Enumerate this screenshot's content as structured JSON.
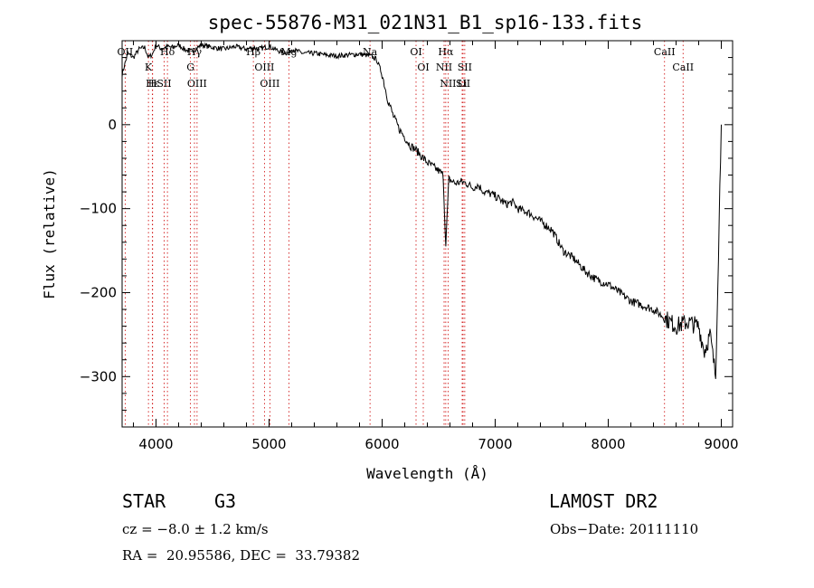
{
  "chart_data": {
    "type": "line",
    "title": "spec-55876-M31_021N31_B1_sp16-133.fits",
    "xlabel": "Wavelength (Å)",
    "ylabel": "Flux (relative)",
    "xlim": [
      3700,
      9100
    ],
    "ylim": [
      -360,
      100
    ],
    "xticks": [
      4000,
      5000,
      6000,
      7000,
      8000,
      9000
    ],
    "yticks": [
      0,
      -100,
      -200,
      -300
    ],
    "grid": false,
    "series": [
      {
        "x": [
          3700,
          3750,
          3800,
          3850,
          3900,
          3933,
          3968,
          4000,
          4050,
          4100,
          4150,
          4200,
          4250,
          4300,
          4350,
          4400,
          4500,
          4600,
          4700,
          4800,
          4861,
          4900,
          5000,
          5100,
          5175,
          5200,
          5300,
          5400,
          5500,
          5600,
          5700,
          5800,
          5893,
          5950,
          6000,
          6050,
          6100,
          6150,
          6200,
          6250,
          6300,
          6350,
          6400,
          6450,
          6500,
          6540,
          6563,
          6590,
          6650,
          6700,
          6750,
          6800,
          6850,
          6900,
          6950,
          7000,
          7050,
          7100,
          7150,
          7200,
          7300,
          7400,
          7500,
          7600,
          7700,
          7800,
          7900,
          8000,
          8100,
          8200,
          8300,
          8400,
          8500,
          8600,
          8700,
          8800,
          8850,
          8900,
          8950,
          9000
        ],
        "y": [
          60,
          85,
          80,
          90,
          92,
          80,
          84,
          95,
          90,
          93,
          92,
          95,
          90,
          87,
          90,
          95,
          92,
          90,
          93,
          90,
          92,
          90,
          93,
          87,
          85,
          90,
          85,
          85,
          83,
          82,
          83,
          84,
          82,
          78,
          60,
          30,
          10,
          -5,
          -15,
          -25,
          -30,
          -38,
          -45,
          -50,
          -55,
          -60,
          -145,
          -65,
          -70,
          -68,
          -70,
          -75,
          -72,
          -80,
          -82,
          -85,
          -90,
          -95,
          -92,
          -100,
          -105,
          -115,
          -125,
          -150,
          -160,
          -175,
          -185,
          -190,
          -200,
          -210,
          -215,
          -220,
          -230,
          -240,
          -235,
          -240,
          -270,
          -250,
          -300,
          0
        ]
      }
    ],
    "lines": [
      {
        "label": "Hδ",
        "wave": 4101
      },
      {
        "label": "K",
        "wave": 3933
      },
      {
        "label": "H",
        "wave": 3968
      },
      {
        "label": "Hε",
        "wave": 3970
      },
      {
        "label": "OII",
        "wave": 3727
      },
      {
        "label": "SII",
        "wave": 4072
      },
      {
        "label": "Hγ",
        "wave": 4340
      },
      {
        "label": "G",
        "wave": 4305
      },
      {
        "label": "OIII",
        "wave": 4363
      },
      {
        "label": "Hβ",
        "wave": 4861
      },
      {
        "label": "OIII",
        "wave": 4959
      },
      {
        "label": "OIII",
        "wave": 5007
      },
      {
        "label": "Mg",
        "wave": 5175
      },
      {
        "label": "Na",
        "wave": 5893
      },
      {
        "label": "OI",
        "wave": 6300
      },
      {
        "label": "OI",
        "wave": 6364
      },
      {
        "label": "Hα",
        "wave": 6563
      },
      {
        "label": "NII",
        "wave": 6548
      },
      {
        "label": "NII",
        "wave": 6583
      },
      {
        "label": "SII",
        "wave": 6716
      },
      {
        "label": "SII",
        "wave": 6731
      },
      {
        "label": "Li",
        "wave": 6708
      },
      {
        "label": "CaII",
        "wave": 8498
      },
      {
        "label": "CaII",
        "wave": 8662
      }
    ]
  },
  "info": {
    "class_label": "STAR",
    "subclass": "G3",
    "survey": "LAMOST DR2",
    "redshift": "cz = −8.0 ± 1.2 km/s",
    "obs_date": "Obs−Date: 20111110",
    "coords": "RA =  20.95586, DEC =  33.79382"
  },
  "colors": {
    "spectrum": "#000000",
    "line_markers": "#cc0000",
    "axes": "#000000"
  }
}
